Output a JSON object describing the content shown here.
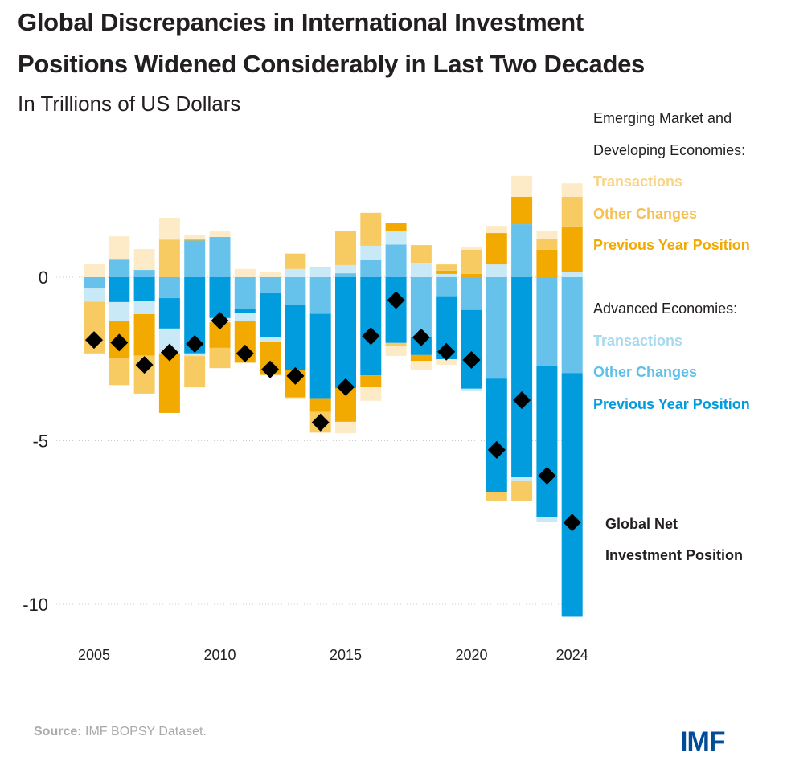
{
  "title_line1": "Global Discrepancies in International Investment",
  "title_line2": "Positions Widened Considerably in Last Two Decades",
  "subtitle": "In Trillions of US Dollars",
  "legend": {
    "em_heading_1": "Emerging Market and",
    "em_heading_2": "Developing Economies:",
    "em_t": "Transactions",
    "em_o": "Other Changes",
    "em_p": "Previous Year Position",
    "ae_heading": "Advanced Economies:",
    "ae_t": "Transactions",
    "ae_o": "Other Changes",
    "ae_p": "Previous Year Position",
    "nip_1": "Global Net",
    "nip_2": "Investment Position"
  },
  "source_label": "Source:",
  "source_text": "IMF BOPSY Dataset.",
  "logo": "IMF",
  "chart_data": {
    "type": "bar",
    "stacked": true,
    "ylim": [
      -10.4,
      3.2
    ],
    "yticks": [
      "0",
      "-5",
      "-10"
    ],
    "ytick_values": [
      0,
      -5,
      -10
    ],
    "xticks": [
      "2005",
      "2010",
      "2015",
      "2020",
      "2024"
    ],
    "grid": "horizontal dotted",
    "legend_placement": "right",
    "colors": {
      "em_t": "#fdebc8",
      "em_o": "#f7ca62",
      "em_p": "#f2a900",
      "ae_t": "#c9e9f7",
      "ae_o": "#66c2ea",
      "ae_p": "#009cde",
      "nip": "#000000"
    },
    "label_colors": {
      "em_t": "#f8d487",
      "em_o": "#f5c052",
      "em_p": "#f2a900",
      "ae_t": "#a4daf1",
      "ae_o": "#5ebfe9",
      "ae_p": "#009cde"
    },
    "years": [
      {
        "year": 2005,
        "nip": -1.92,
        "segments": [
          [
            "ae_o",
            -0.35
          ],
          [
            "ae_t",
            -0.4
          ],
          [
            "em_o",
            -1.58
          ],
          [
            "em_t",
            0.42
          ]
        ]
      },
      {
        "year": 2006,
        "nip": -2.0,
        "segments": [
          [
            "ae_o",
            0.56
          ],
          [
            "em_t",
            0.69
          ],
          [
            "ae_p",
            -0.76
          ],
          [
            "ae_t",
            -0.57
          ],
          [
            "em_p",
            -1.13
          ],
          [
            "em_o",
            -0.84
          ]
        ]
      },
      {
        "year": 2007,
        "nip": -2.68,
        "segments": [
          [
            "ae_o",
            0.22
          ],
          [
            "em_t",
            0.64
          ],
          [
            "ae_p",
            -0.74
          ],
          [
            "ae_t",
            -0.39
          ],
          [
            "em_p",
            -1.27
          ],
          [
            "em_o",
            -1.16
          ]
        ]
      },
      {
        "year": 2008,
        "nip": -2.3,
        "segments": [
          [
            "em_o",
            1.15
          ],
          [
            "em_t",
            0.67
          ],
          [
            "ae_o",
            -0.64
          ],
          [
            "ae_p",
            -0.93
          ],
          [
            "ae_t",
            -0.76
          ],
          [
            "em_p",
            -1.82
          ]
        ]
      },
      {
        "year": 2009,
        "nip": -2.04,
        "segments": [
          [
            "ae_o",
            1.12
          ],
          [
            "em_p",
            0.03
          ],
          [
            "em_t",
            0.15
          ],
          [
            "ae_p",
            -2.33
          ],
          [
            "ae_t",
            -0.08
          ],
          [
            "em_o",
            -0.96
          ]
        ]
      },
      {
        "year": 2010,
        "nip": -1.33,
        "segments": [
          [
            "ae_o",
            1.23
          ],
          [
            "em_t",
            0.19
          ],
          [
            "ae_p",
            -1.25
          ],
          [
            "ae_t",
            -0.13
          ],
          [
            "em_p",
            -0.78
          ],
          [
            "em_o",
            -0.62
          ]
        ]
      },
      {
        "year": 2011,
        "nip": -2.33,
        "segments": [
          [
            "em_t",
            0.25
          ],
          [
            "ae_o",
            -0.98
          ],
          [
            "ae_p",
            -0.12
          ],
          [
            "ae_t",
            -0.25
          ],
          [
            "em_p",
            -1.23
          ],
          [
            "em_o",
            -0.04
          ]
        ]
      },
      {
        "year": 2012,
        "nip": -2.82,
        "segments": [
          [
            "em_t",
            0.15
          ],
          [
            "ae_o",
            -0.49
          ],
          [
            "ae_p",
            -1.35
          ],
          [
            "ae_t",
            -0.13
          ],
          [
            "em_p",
            -0.98
          ],
          [
            "em_o",
            -0.05
          ]
        ]
      },
      {
        "year": 2013,
        "nip": -3.02,
        "segments": [
          [
            "ae_t",
            0.25
          ],
          [
            "em_o",
            0.47
          ],
          [
            "ae_o",
            -0.85
          ],
          [
            "ae_p",
            -1.99
          ],
          [
            "em_p",
            -0.84
          ],
          [
            "em_t",
            -0.05
          ]
        ]
      },
      {
        "year": 2014,
        "nip": -4.44,
        "segments": [
          [
            "ae_t",
            0.32
          ],
          [
            "ae_o",
            -1.12
          ],
          [
            "ae_p",
            -2.58
          ],
          [
            "em_p",
            -0.42
          ],
          [
            "em_o",
            -0.6
          ],
          [
            "em_t",
            -0.05
          ]
        ]
      },
      {
        "year": 2015,
        "nip": -3.36,
        "segments": [
          [
            "ae_o",
            0.12
          ],
          [
            "ae_t",
            0.25
          ],
          [
            "em_o",
            1.03
          ],
          [
            "ae_p",
            -3.39
          ],
          [
            "em_p",
            -1.03
          ],
          [
            "em_t",
            -0.35
          ]
        ]
      },
      {
        "year": 2016,
        "nip": -1.8,
        "segments": [
          [
            "ae_o",
            0.52
          ],
          [
            "ae_t",
            0.44
          ],
          [
            "em_o",
            1.01
          ],
          [
            "ae_p",
            -3.0
          ],
          [
            "em_p",
            -0.37
          ],
          [
            "em_t",
            -0.41
          ]
        ]
      },
      {
        "year": 2017,
        "nip": -0.7,
        "segments": [
          [
            "ae_o",
            1.0
          ],
          [
            "ae_t",
            0.42
          ],
          [
            "em_p",
            0.25
          ],
          [
            "ae_p",
            -2.01
          ],
          [
            "em_o",
            -0.1
          ],
          [
            "em_t",
            -0.3
          ]
        ]
      },
      {
        "year": 2018,
        "nip": -1.84,
        "segments": [
          [
            "ae_t",
            0.44
          ],
          [
            "em_o",
            0.54
          ],
          [
            "ae_o",
            -1.84
          ],
          [
            "ae_p",
            -0.54
          ],
          [
            "em_p",
            -0.18
          ],
          [
            "em_t",
            -0.27
          ]
        ]
      },
      {
        "year": 2019,
        "nip": -2.28,
        "segments": [
          [
            "ae_t",
            0.1
          ],
          [
            "em_p",
            0.1
          ],
          [
            "em_o",
            0.19
          ],
          [
            "ae_o",
            -0.58
          ],
          [
            "ae_p",
            -1.93
          ],
          [
            "em_t",
            -0.17
          ]
        ]
      },
      {
        "year": 2020,
        "nip": -2.53,
        "segments": [
          [
            "em_p",
            0.1
          ],
          [
            "em_o",
            0.74
          ],
          [
            "em_t",
            0.07
          ],
          [
            "ae_o",
            -1.0
          ],
          [
            "ae_p",
            -2.41
          ],
          [
            "ae_t",
            -0.05
          ]
        ]
      },
      {
        "year": 2021,
        "nip": -5.28,
        "segments": [
          [
            "ae_t",
            0.39
          ],
          [
            "em_p",
            0.96
          ],
          [
            "em_t",
            0.22
          ],
          [
            "ae_o",
            -3.1
          ],
          [
            "ae_p",
            -3.46
          ],
          [
            "em_o",
            -0.29
          ]
        ]
      },
      {
        "year": 2022,
        "nip": -3.76,
        "segments": [
          [
            "ae_o",
            1.62
          ],
          [
            "em_p",
            0.84
          ],
          [
            "em_t",
            0.64
          ],
          [
            "ae_p",
            -6.12
          ],
          [
            "ae_t",
            -0.12
          ],
          [
            "em_o",
            -0.61
          ]
        ]
      },
      {
        "year": 2023,
        "nip": -6.07,
        "segments": [
          [
            "em_p",
            0.84
          ],
          [
            "em_o",
            0.32
          ],
          [
            "em_t",
            0.24
          ],
          [
            "ae_o",
            -2.7
          ],
          [
            "ae_p",
            -4.63
          ],
          [
            "ae_t",
            -0.15
          ]
        ]
      },
      {
        "year": 2024,
        "nip": -7.5,
        "segments": [
          [
            "ae_t",
            0.15
          ],
          [
            "em_p",
            1.4
          ],
          [
            "em_o",
            0.91
          ],
          [
            "em_t",
            0.41
          ],
          [
            "ae_o",
            -2.93
          ],
          [
            "ae_p",
            -7.45
          ]
        ]
      }
    ]
  }
}
